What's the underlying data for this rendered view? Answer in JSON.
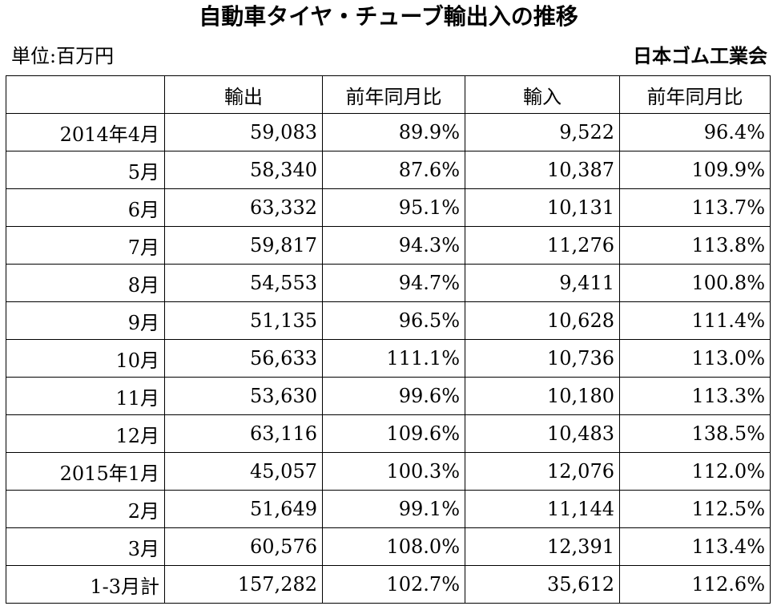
{
  "title": "自動車タイヤ・チューブ輸出入の推移",
  "unit_label": "単位:百万円",
  "source": "日本ゴム工業会",
  "table": {
    "headers": [
      "",
      "輸出",
      "前年同月比",
      "輸入",
      "前年同月比"
    ],
    "rows": [
      [
        "2014年4月",
        "59,083",
        "89.9%",
        "9,522",
        "96.4%"
      ],
      [
        "5月",
        "58,340",
        "87.6%",
        "10,387",
        "109.9%"
      ],
      [
        "6月",
        "63,332",
        "95.1%",
        "10,131",
        "113.7%"
      ],
      [
        "7月",
        "59,817",
        "94.3%",
        "11,276",
        "113.8%"
      ],
      [
        "8月",
        "54,553",
        "94.7%",
        "9,411",
        "100.8%"
      ],
      [
        "9月",
        "51,135",
        "96.5%",
        "10,628",
        "111.4%"
      ],
      [
        "10月",
        "56,633",
        "111.1%",
        "10,736",
        "113.0%"
      ],
      [
        "11月",
        "53,630",
        "99.6%",
        "10,180",
        "113.3%"
      ],
      [
        "12月",
        "63,116",
        "109.6%",
        "10,483",
        "138.5%"
      ],
      [
        "2015年1月",
        "45,057",
        "100.3%",
        "12,076",
        "112.0%"
      ],
      [
        "2月",
        "51,649",
        "99.1%",
        "11,144",
        "112.5%"
      ],
      [
        "3月",
        "60,576",
        "108.0%",
        "12,391",
        "113.4%"
      ],
      [
        "1-3月計",
        "157,282",
        "102.7%",
        "35,612",
        "112.6%"
      ]
    ]
  }
}
